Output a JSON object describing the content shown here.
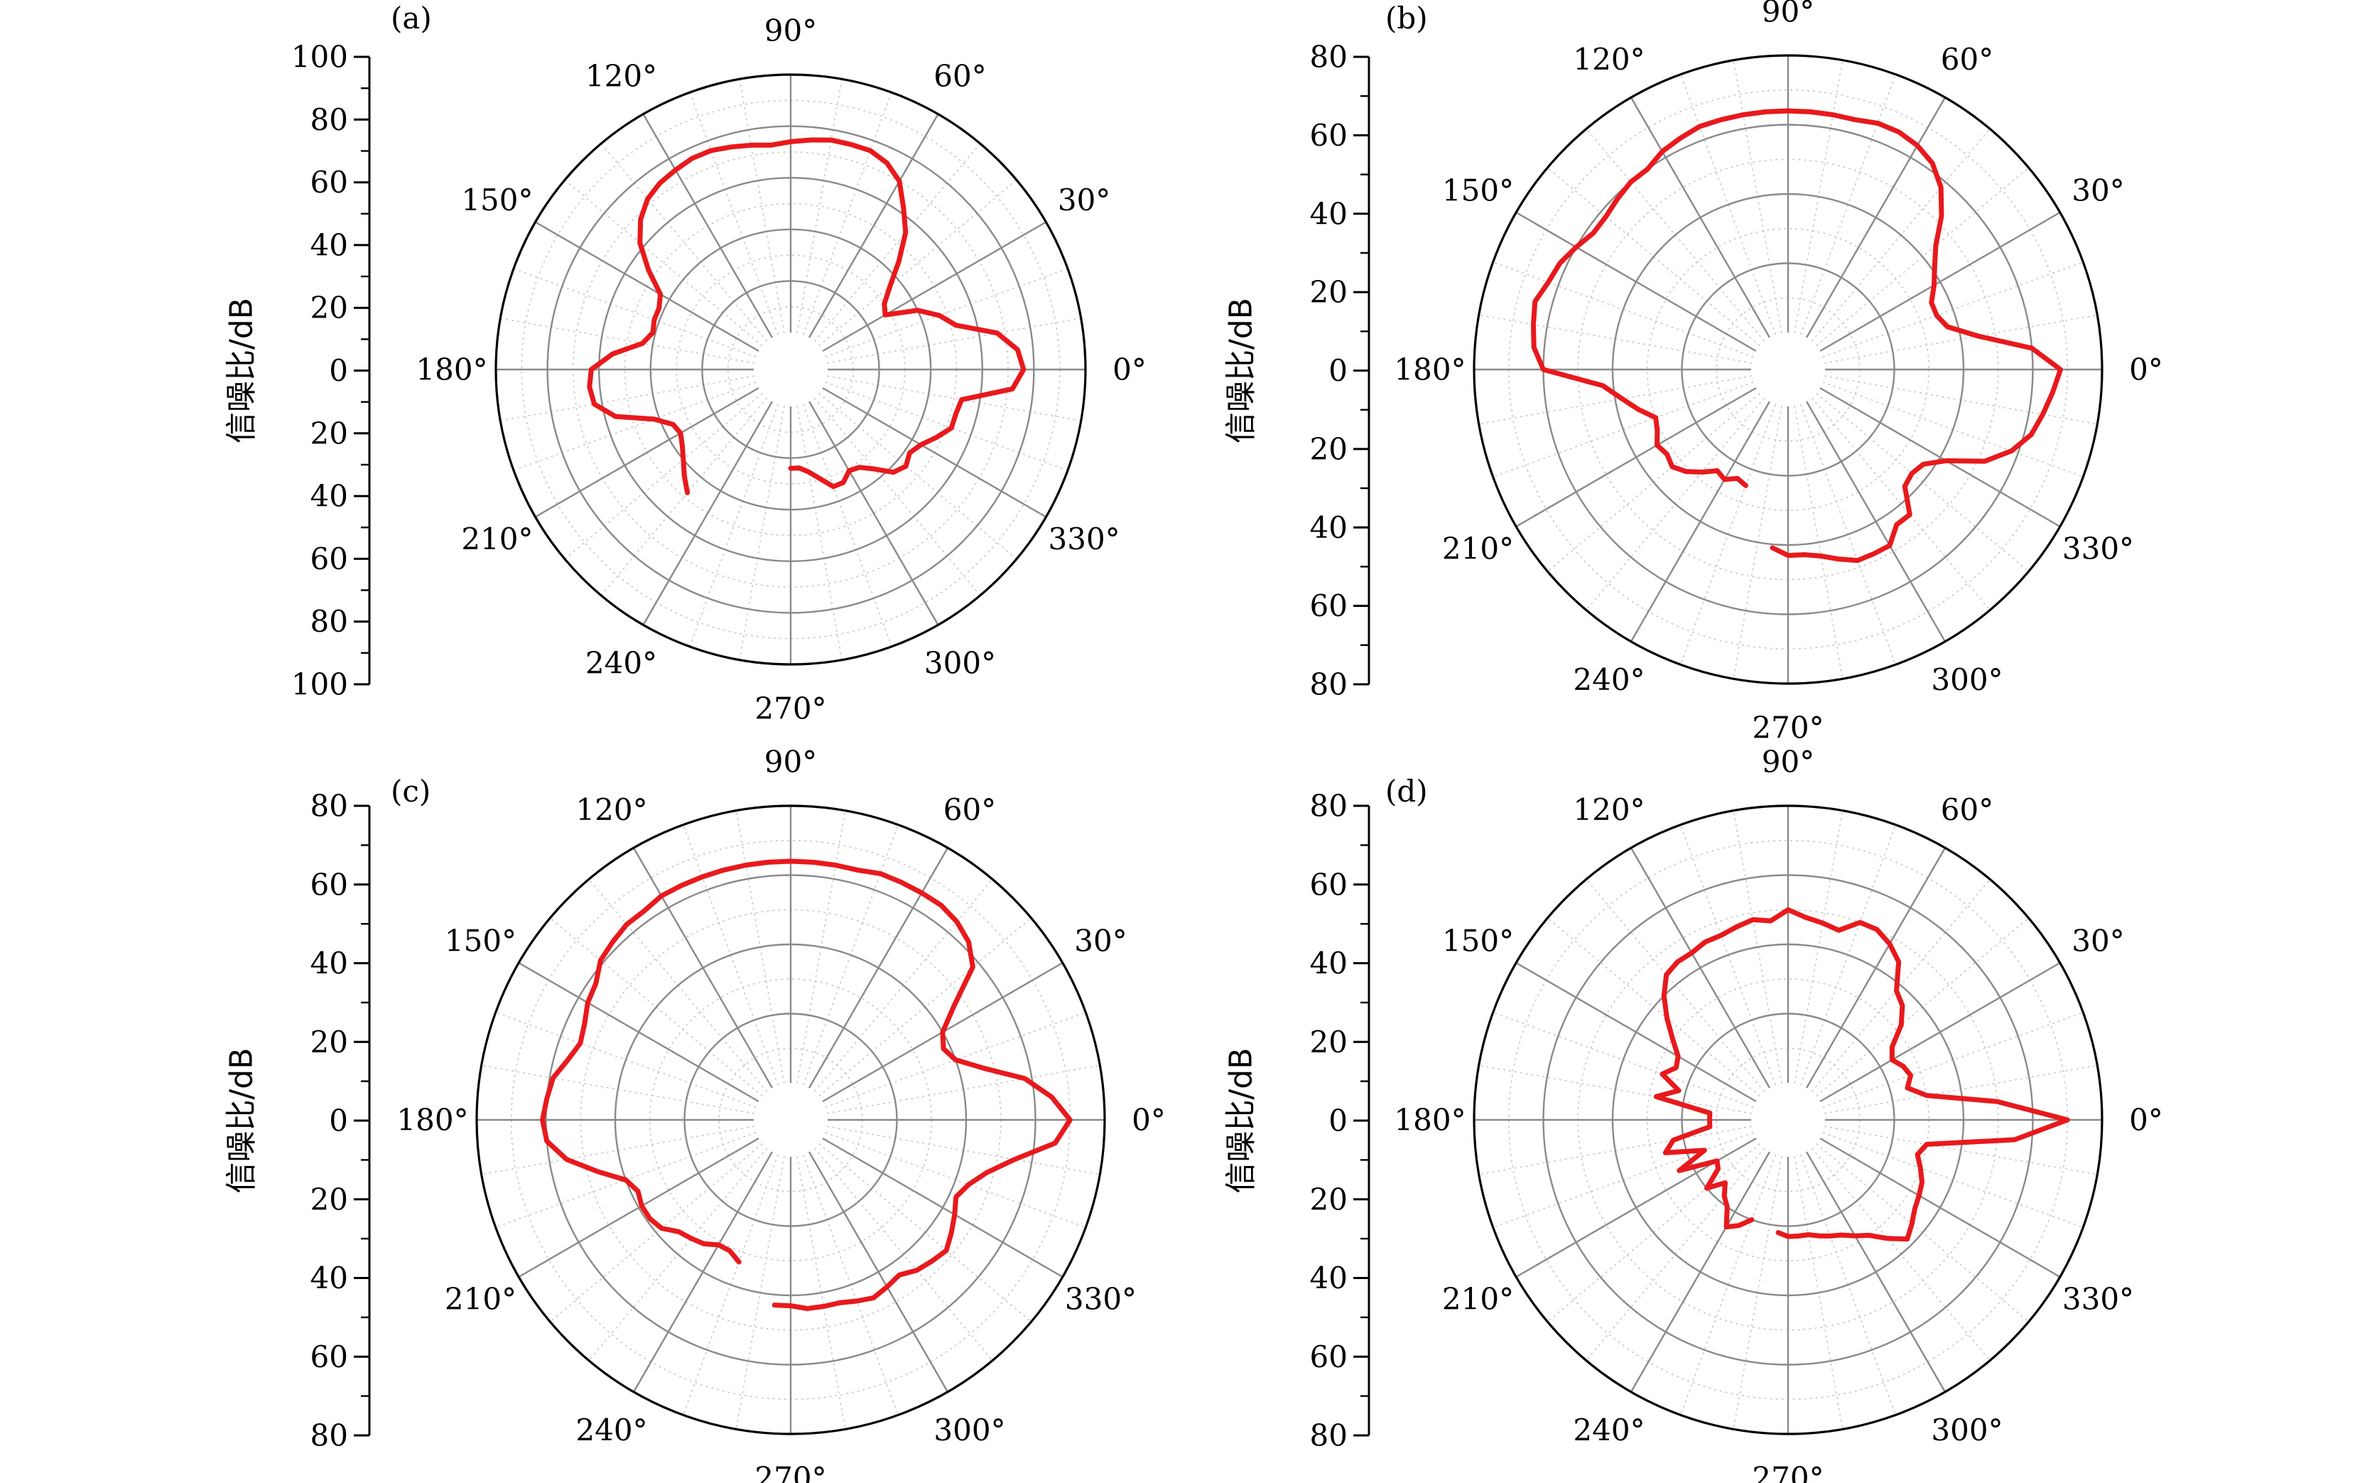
{
  "figure": {
    "angle_tick_labels": [
      "0°",
      "30°",
      "60°",
      "90°",
      "120°",
      "150°",
      "180°",
      "210°",
      "240°",
      "270°",
      "300°",
      "330°"
    ]
  },
  "chart_data": [
    {
      "type": "line",
      "panel_label": "(a)",
      "coordinate_system": "polar",
      "ylabel": "信噪比/dB",
      "radial_range": [
        0,
        100
      ],
      "radial_tick_labels": [
        "100",
        "80",
        "60",
        "40",
        "20",
        "0",
        "20",
        "40",
        "60",
        "80",
        "100"
      ],
      "grid": true,
      "series_color": "#e8191c",
      "series": [
        {
          "theta": [
            230,
            225,
            220,
            215,
            210,
            205,
            200,
            195,
            190,
            185,
            180,
            175,
            170,
            165,
            160,
            155,
            150,
            145,
            140,
            135,
            130,
            125,
            120,
            115,
            110,
            105,
            100,
            95,
            90,
            85,
            80,
            75,
            70,
            65,
            60,
            55,
            50,
            45,
            40,
            35,
            30,
            25,
            20,
            15,
            10,
            5,
            0,
            355,
            350,
            345,
            340,
            335,
            330,
            325,
            320,
            315,
            310,
            305,
            300,
            295,
            290,
            280,
            275,
            270
          ],
          "r": [
            48,
            44,
            40,
            37,
            35,
            36,
            42,
            56,
            63,
            64,
            63,
            55,
            44,
            41,
            42,
            42,
            44,
            53,
            62,
            68,
            72,
            74,
            75,
            76,
            76,
            75,
            74,
            73,
            74,
            75,
            76,
            76,
            76,
            74,
            70,
            62,
            55,
            45,
            36,
            30,
            28,
            40,
            47,
            52,
            67,
            74,
            76,
            72,
            53,
            52,
            52,
            48,
            44,
            42,
            44,
            42,
            36,
            32,
            31,
            34,
            34,
            26,
            24,
            24
          ]
        }
      ]
    },
    {
      "type": "line",
      "panel_label": "(b)",
      "coordinate_system": "polar",
      "ylabel": "信噪比/dB",
      "radial_range": [
        0,
        80
      ],
      "radial_tick_labels": [
        "80",
        "60",
        "40",
        "20",
        "0",
        "20",
        "40",
        "60",
        "80"
      ],
      "grid": true,
      "series_color": "#e8191c",
      "series": [
        {
          "theta": [
            250,
            245,
            240,
            235,
            230,
            225,
            220,
            215,
            210,
            205,
            200,
            195,
            190,
            185,
            180,
            175,
            170,
            165,
            160,
            155,
            150,
            145,
            140,
            135,
            130,
            125,
            120,
            115,
            110,
            105,
            100,
            95,
            90,
            85,
            80,
            75,
            70,
            65,
            60,
            55,
            50,
            45,
            40,
            35,
            30,
            25,
            20,
            15,
            10,
            5,
            0,
            355,
            350,
            345,
            340,
            335,
            330,
            325,
            320,
            315,
            310,
            305,
            300,
            295,
            290,
            285,
            280,
            275,
            270,
            265
          ],
          "r": [
            25,
            24,
            26,
            25,
            28,
            31,
            33,
            32,
            33,
            31,
            30,
            34,
            38,
            43,
            60,
            63,
            64,
            65,
            63,
            62,
            60,
            58,
            58,
            59,
            60,
            60,
            62,
            63,
            64,
            64,
            64,
            64,
            64,
            64,
            64,
            64,
            65,
            65,
            64,
            62,
            58,
            52,
            45,
            41,
            38,
            35,
            35,
            37,
            45,
            60,
            68,
            66,
            64,
            62,
            58,
            52,
            42,
            37,
            36,
            37,
            44,
            44,
            48,
            48,
            48,
            46,
            44,
            43,
            43,
            41
          ]
        }
      ]
    },
    {
      "type": "line",
      "panel_label": "(c)",
      "coordinate_system": "polar",
      "ylabel": "信噪比/dB",
      "radial_range": [
        0,
        80
      ],
      "radial_tick_labels": [
        "80",
        "60",
        "40",
        "20",
        "0",
        "20",
        "40",
        "60",
        "80"
      ],
      "grid": true,
      "series_color": "#e8191c",
      "series": [
        {
          "theta": [
            250,
            245,
            240,
            235,
            230,
            225,
            220,
            215,
            210,
            205,
            200,
            195,
            190,
            185,
            180,
            175,
            170,
            165,
            160,
            155,
            150,
            145,
            140,
            135,
            130,
            125,
            120,
            115,
            110,
            105,
            100,
            95,
            90,
            85,
            80,
            75,
            70,
            65,
            60,
            55,
            50,
            45,
            40,
            35,
            30,
            25,
            20,
            15,
            10,
            5,
            0,
            355,
            350,
            345,
            340,
            335,
            330,
            325,
            320,
            315,
            310,
            305,
            300,
            295,
            290,
            285,
            280,
            275,
            270,
            265
          ],
          "r": [
            33,
            31,
            31,
            33,
            34,
            35,
            38,
            39,
            39,
            38,
            40,
            47,
            55,
            60,
            61,
            60,
            59,
            56,
            54,
            55,
            57,
            58,
            61,
            62,
            63,
            63,
            64,
            64,
            64,
            64,
            64,
            64,
            64,
            64,
            64,
            64,
            65,
            65,
            65,
            65,
            64,
            62,
            58,
            47,
            40,
            38,
            40,
            47,
            58,
            65,
            70,
            66,
            55,
            48,
            44,
            42,
            44,
            46,
            48,
            47,
            46,
            44,
            45,
            46,
            45,
            44,
            44,
            44,
            43,
            43
          ]
        }
      ]
    },
    {
      "type": "line",
      "panel_label": "(d)",
      "coordinate_system": "polar",
      "ylabel": "信噪比/dB",
      "radial_range": [
        0,
        80
      ],
      "radial_tick_labels": [
        "80",
        "60",
        "40",
        "20",
        "0",
        "20",
        "40",
        "60",
        "80"
      ],
      "grid": true,
      "series_color": "#e8191c",
      "series": [
        {
          "theta": [
            250,
            245,
            240,
            235,
            230,
            225,
            220,
            215,
            210,
            205,
            200,
            195,
            190,
            185,
            180,
            175,
            170,
            165,
            160,
            155,
            150,
            145,
            140,
            135,
            130,
            125,
            120,
            115,
            110,
            105,
            100,
            95,
            90,
            85,
            80,
            75,
            70,
            65,
            60,
            55,
            50,
            45,
            40,
            35,
            30,
            25,
            20,
            15,
            10,
            5,
            0,
            355,
            350,
            345,
            340,
            335,
            330,
            325,
            320,
            315,
            310,
            305,
            300,
            295,
            290,
            285,
            280,
            275,
            270,
            265
          ],
          "r": [
            20,
            23,
            25,
            20,
            18,
            15,
            20,
            14,
            13,
            24,
            15,
            26,
            23,
            12,
            12,
            12,
            28,
            22,
            28,
            25,
            26,
            30,
            35,
            40,
            44,
            45,
            45,
            46,
            46,
            47,
            48,
            47,
            50,
            48,
            47,
            46,
            50,
            50,
            48,
            45,
            38,
            36,
            32,
            26,
            24,
            26,
            27,
            25,
            30,
            50,
            70,
            55,
            30,
            28,
            30,
            32,
            33,
            34,
            36,
            38,
            34,
            30,
            28,
            26,
            25,
            24,
            23,
            23,
            23,
            22
          ]
        }
      ]
    }
  ]
}
